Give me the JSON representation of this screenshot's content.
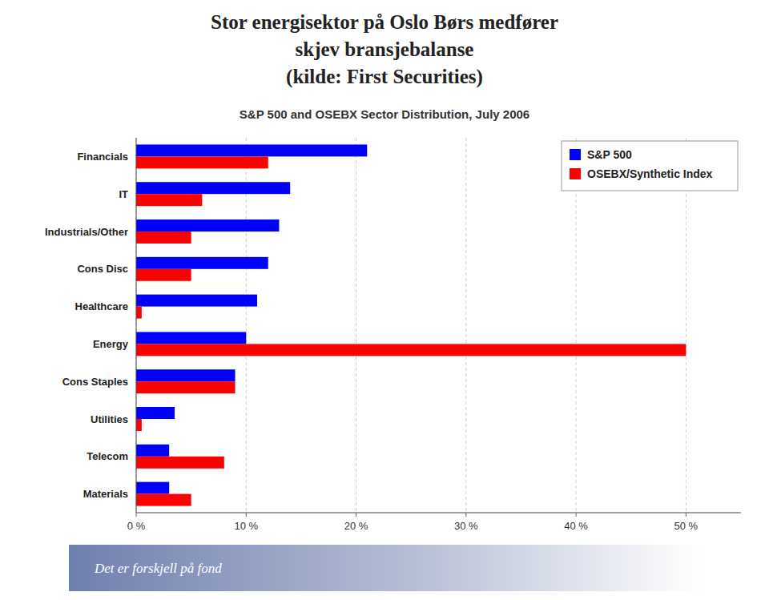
{
  "chart_data": {
    "type": "bar",
    "orientation": "horizontal",
    "title": [
      "Stor energisektor på Oslo Børs medfører",
      "skjev bransjebalanse",
      "(kilde: First Securities)"
    ],
    "subtitle": "S&P 500 and OSEBX Sector Distribution, July 2006",
    "annotations": [
      "Det er forskjell på fond"
    ],
    "categories": [
      "Financials",
      "IT",
      "Industrials/Other",
      "Cons Disc",
      "Healthcare",
      "Energy",
      "Cons Staples",
      "Utilities",
      "Telecom",
      "Materials"
    ],
    "series": [
      {
        "name": "S&P 500",
        "color": "#0000FF",
        "values": [
          21.0,
          14.0,
          13.0,
          12.0,
          11.0,
          10.0,
          9.0,
          3.5,
          3.0,
          3.0
        ]
      },
      {
        "name": "OSEBX/Synthetic Index",
        "color": "#FF0000",
        "values": [
          12.0,
          6.0,
          5.0,
          5.0,
          0.5,
          50.0,
          9.0,
          0.5,
          8.0,
          5.0
        ]
      }
    ],
    "xlim": [
      0,
      55
    ],
    "xticks": [
      {
        "value": 0,
        "label": "0 %"
      },
      {
        "value": 10,
        "label": "10 %"
      },
      {
        "value": 20,
        "label": "20 %"
      },
      {
        "value": 30,
        "label": "30 %"
      },
      {
        "value": 40,
        "label": "40 %"
      },
      {
        "value": 50,
        "label": "50 %"
      }
    ],
    "grid": true,
    "legend": "upper-right"
  }
}
